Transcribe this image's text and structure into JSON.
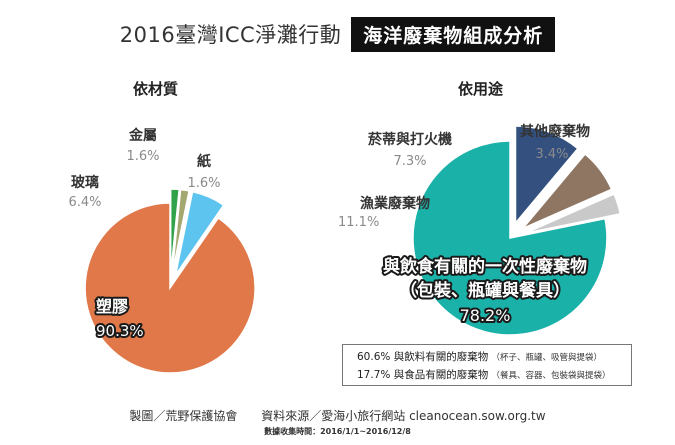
{
  "header": {
    "title": "2016臺灣ICC淨灘行動",
    "badge": "海洋廢棄物組成分析"
  },
  "legend_box": {
    "line1_main": "60.6% 與飲料有關的廢棄物",
    "line1_note": "（杯子、瓶罐、吸管與提袋）",
    "line2_main": "17.7% 與食品有關的廢棄物",
    "line2_note": "（餐具、容器、包裝袋與提袋）"
  },
  "footer": {
    "credit": "製圖／荒野保護協會",
    "source": "資料來源／愛海小旅行網站 cleanocean.sow.org.tw",
    "date_range": "數據收集時間：2016/1/1~2016/12/8"
  },
  "chart_data": [
    {
      "type": "pie",
      "title": "依材質",
      "labels": [
        "塑膠",
        "玻璃",
        "金屬",
        "紙"
      ],
      "values": [
        90.3,
        6.4,
        1.6,
        1.6
      ],
      "value_labels": [
        "90.3%",
        "6.4%",
        "1.6%",
        "1.6%"
      ],
      "colors": [
        "#e0784a",
        "#5cc4ee",
        "#a3a870",
        "#2fa24a"
      ],
      "exploded": [
        "玻璃",
        "金屬",
        "紙"
      ]
    },
    {
      "type": "pie",
      "title": "依用途",
      "labels": [
        "與飲食有關的一次性廢棄物",
        "漁業廢棄物",
        "菸蒂與打火機",
        "其他廢棄物"
      ],
      "subtitle_label": "（包裝、瓶罐與餐具）",
      "values": [
        78.2,
        11.1,
        7.3,
        3.4
      ],
      "value_labels": [
        "78.2%",
        "11.1%",
        "7.3%",
        "3.4%"
      ],
      "colors": [
        "#1ab1a8",
        "#33507f",
        "#8e7663",
        "#c9c9c9"
      ],
      "exploded": [
        "漁業廢棄物",
        "菸蒂與打火機",
        "其他廢棄物"
      ]
    }
  ]
}
